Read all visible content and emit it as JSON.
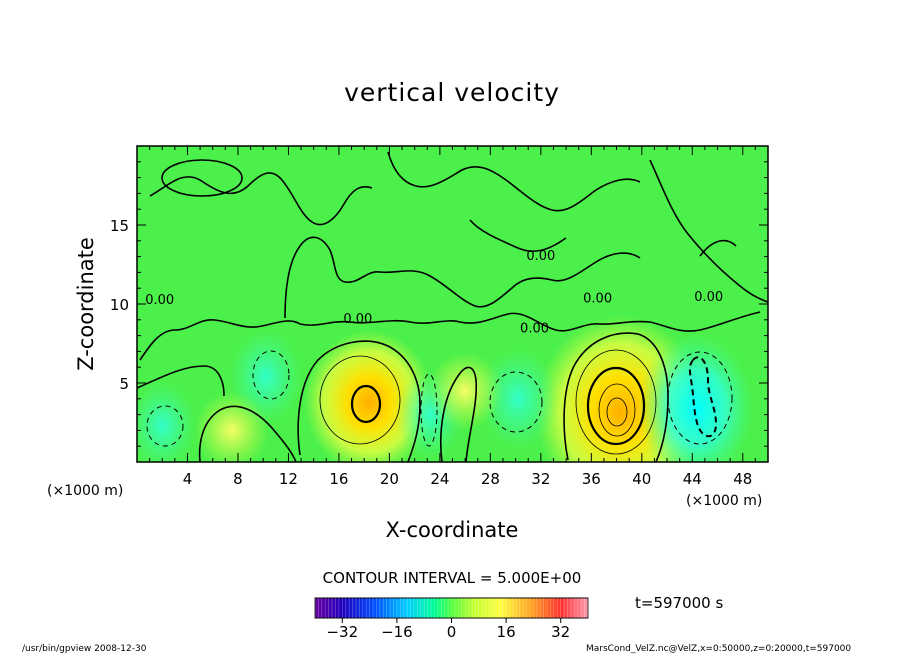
{
  "chart_data": {
    "type": "heatmap",
    "title": "vertical velocity",
    "xlabel": "X-coordinate",
    "ylabel": "Z-coordinate",
    "x_unit_left": "(×1000 m)",
    "x_unit_right": "(×1000 m)",
    "xlim": [
      0,
      50
    ],
    "ylim": [
      0,
      20
    ],
    "x_ticks": [
      4,
      8,
      12,
      16,
      20,
      24,
      28,
      32,
      36,
      40,
      44,
      48
    ],
    "y_ticks": [
      5,
      10,
      15
    ],
    "contour_interval_text": "CONTOUR INTERVAL = 5.000E+00",
    "contour_label": "0.00",
    "contour_label_positions": [
      [
        17.5,
        8.8
      ],
      [
        32.0,
        12.8
      ],
      [
        36.5,
        10.1
      ],
      [
        31.5,
        8.2
      ],
      [
        45.3,
        10.2
      ],
      [
        1.8,
        10.0
      ]
    ],
    "colorbar": {
      "min": -40,
      "max": 40,
      "tick_values": [
        -32,
        -16,
        0,
        16,
        32
      ],
      "tick_labels": [
        "-32",
        "-16",
        "0",
        "16",
        "32"
      ]
    },
    "time_text": "t=597000 s",
    "features": [
      {
        "kind": "updraft",
        "x": 18.4,
        "z": 3.8,
        "peak": 14
      },
      {
        "kind": "updraft",
        "x": 38.3,
        "z": 3.2,
        "peak": 22
      },
      {
        "kind": "downdraft",
        "x": 44.3,
        "z": 3.4,
        "peak": -15
      },
      {
        "kind": "downdraft",
        "x": 30.2,
        "z": 4.0,
        "peak": -7
      },
      {
        "kind": "downdraft",
        "x": 10.2,
        "z": 5.4,
        "peak": -6
      },
      {
        "kind": "downdraft",
        "x": 2.0,
        "z": 2.3,
        "peak": -5
      },
      {
        "kind": "downdraft",
        "x": 23.2,
        "z": 3.0,
        "peak": -5
      },
      {
        "kind": "updraft",
        "x": 26.0,
        "z": 4.5,
        "peak": 3
      },
      {
        "kind": "updraft",
        "x": 7.5,
        "z": 2.0,
        "peak": 3
      }
    ]
  },
  "footer": {
    "left": "/usr/bin/gpview   2008-12-30",
    "right": "MarsCond_VelZ.nc@VelZ,x=0:50000,z=0:20000,t=597000"
  }
}
